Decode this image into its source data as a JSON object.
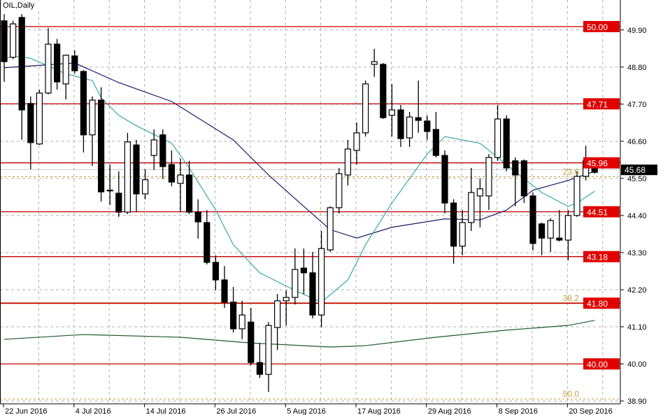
{
  "header": {
    "symbol": "OIL,Daily"
  },
  "chart_data": {
    "type": "candlestick",
    "title": "OIL,Daily",
    "ylim": [
      38.9,
      50.79
    ],
    "yticks": [
      38.9,
      40.0,
      41.1,
      42.2,
      43.3,
      44.4,
      45.5,
      46.6,
      47.7,
      48.8,
      49.9
    ],
    "xtick_labels": [
      "22 Jun 2016",
      "4 Jul 2016",
      "14 Jul 2016",
      "26 Jul 2016",
      "5 Aug 2016",
      "17 Aug 2016",
      "29 Aug 2016",
      "8 Sep 2016",
      "20 Sep 2016"
    ],
    "xtick_bar_index": [
      0,
      8,
      16,
      24,
      32,
      40,
      48,
      56,
      64
    ],
    "grid": true,
    "candle_fields": [
      "open",
      "high",
      "low",
      "close"
    ],
    "candles": [
      [
        50.17,
        50.37,
        48.36,
        48.96
      ],
      [
        49.09,
        50.17,
        49.03,
        50.08
      ],
      [
        50.27,
        50.37,
        46.64,
        47.53
      ],
      [
        47.72,
        47.93,
        45.77,
        46.56
      ],
      [
        46.52,
        48.13,
        46.49,
        48.03
      ],
      [
        48.03,
        49.96,
        47.99,
        49.48
      ],
      [
        49.48,
        49.63,
        48.13,
        48.36
      ],
      [
        48.3,
        49.17,
        47.84,
        49.15
      ],
      [
        49.13,
        49.3,
        48.61,
        48.69
      ],
      [
        48.67,
        48.71,
        46.27,
        46.79
      ],
      [
        46.79,
        47.93,
        45.87,
        47.82
      ],
      [
        47.82,
        48.2,
        44.81,
        45.1
      ],
      [
        45.15,
        45.91,
        44.71,
        45.13
      ],
      [
        45.06,
        45.71,
        44.36,
        44.5
      ],
      [
        44.5,
        46.85,
        44.44,
        46.58
      ],
      [
        46.49,
        46.64,
        44.5,
        45.04
      ],
      [
        45.04,
        45.77,
        44.88,
        45.46
      ],
      [
        46.18,
        46.95,
        45.75,
        46.64
      ],
      [
        46.79,
        46.95,
        45.48,
        45.85
      ],
      [
        45.91,
        46.33,
        45.27,
        45.39
      ],
      [
        45.35,
        46.08,
        44.5,
        45.6
      ],
      [
        45.6,
        46.02,
        44.44,
        44.5
      ],
      [
        44.5,
        44.88,
        43.71,
        44.21
      ],
      [
        44.19,
        44.56,
        42.95,
        43.01
      ],
      [
        43.01,
        43.22,
        42.18,
        42.49
      ],
      [
        42.49,
        42.9,
        41.66,
        41.83
      ],
      [
        41.83,
        42.28,
        40.93,
        41.04
      ],
      [
        41.04,
        41.87,
        40.73,
        41.45
      ],
      [
        41.24,
        41.66,
        39.96,
        40.04
      ],
      [
        40.04,
        40.62,
        39.58,
        39.69
      ],
      [
        39.69,
        41.24,
        39.17,
        41.14
      ],
      [
        41.08,
        42.07,
        40.41,
        41.87
      ],
      [
        41.87,
        42.18,
        41.14,
        41.97
      ],
      [
        41.97,
        43.42,
        41.76,
        42.8
      ],
      [
        42.84,
        43.42,
        42.07,
        42.7
      ],
      [
        42.7,
        43.32,
        41.35,
        41.45
      ],
      [
        41.45,
        43.94,
        41.08,
        43.42
      ],
      [
        43.38,
        44.67,
        43.32,
        44.63
      ],
      [
        44.63,
        45.81,
        44.46,
        45.64
      ],
      [
        45.6,
        46.64,
        45.29,
        46.37
      ],
      [
        46.33,
        47.16,
        45.91,
        46.85
      ],
      [
        46.85,
        48.4,
        46.74,
        48.3
      ],
      [
        48.88,
        49.34,
        48.51,
        48.96
      ],
      [
        48.88,
        48.92,
        47.26,
        47.3
      ],
      [
        47.37,
        48.3,
        46.74,
        47.53
      ],
      [
        47.53,
        47.68,
        46.43,
        46.68
      ],
      [
        46.7,
        47.47,
        46.43,
        47.32
      ],
      [
        47.3,
        48.4,
        46.85,
        47.22
      ],
      [
        47.2,
        47.37,
        46.64,
        46.89
      ],
      [
        46.95,
        47.47,
        46.12,
        46.18
      ],
      [
        46.18,
        46.33,
        44.46,
        44.77
      ],
      [
        44.77,
        44.88,
        42.97,
        43.49
      ],
      [
        43.49,
        44.56,
        43.22,
        44.19
      ],
      [
        44.19,
        45.81,
        43.94,
        45.08
      ],
      [
        44.98,
        45.5,
        44.05,
        45.19
      ],
      [
        44.98,
        46.22,
        44.56,
        46.12
      ],
      [
        46.12,
        47.68,
        46.02,
        47.26
      ],
      [
        47.26,
        47.37,
        45.71,
        45.81
      ],
      [
        46.02,
        46.12,
        44.67,
        45.6
      ],
      [
        46.02,
        46.06,
        44.77,
        44.98
      ],
      [
        44.98,
        45.08,
        43.36,
        43.57
      ],
      [
        44.15,
        44.19,
        43.22,
        43.73
      ],
      [
        43.73,
        44.32,
        43.32,
        44.25
      ],
      [
        43.73,
        44.56,
        43.63,
        43.67
      ],
      [
        43.67,
        44.56,
        43.07,
        44.4
      ],
      [
        44.4,
        45.71,
        44.36,
        45.56
      ],
      [
        45.56,
        46.47,
        45.44,
        46.02
      ],
      [
        46.02,
        46.06,
        45.64,
        45.68
      ]
    ],
    "moving_averages": [
      {
        "color": "#1a1a6e",
        "points": [
          [
            0,
            48.78
          ],
          [
            8,
            48.92
          ],
          [
            13,
            48.34
          ],
          [
            19,
            47.78
          ],
          [
            26,
            46.64
          ],
          [
            30,
            45.6
          ],
          [
            34,
            44.67
          ],
          [
            37,
            43.98
          ],
          [
            40,
            43.73
          ],
          [
            44,
            44.05
          ],
          [
            50,
            44.3
          ],
          [
            54,
            44.27
          ],
          [
            57,
            44.56
          ],
          [
            60,
            45.15
          ],
          [
            64,
            45.44
          ],
          [
            67,
            45.71
          ]
        ]
      },
      {
        "color": "#3aa8a8",
        "points": [
          [
            0,
            49.03
          ],
          [
            1,
            49.13
          ],
          [
            3,
            49.06
          ],
          [
            7,
            48.6
          ],
          [
            10,
            48.4
          ],
          [
            11,
            47.89
          ],
          [
            13,
            47.37
          ],
          [
            15,
            47.06
          ],
          [
            19,
            46.54
          ],
          [
            21,
            45.81
          ],
          [
            24,
            44.56
          ],
          [
            26,
            43.53
          ],
          [
            29,
            42.7
          ],
          [
            33,
            42.18
          ],
          [
            36,
            41.83
          ],
          [
            39,
            42.49
          ],
          [
            41,
            43.53
          ],
          [
            44,
            44.77
          ],
          [
            48,
            46.22
          ],
          [
            50,
            46.74
          ],
          [
            54,
            46.54
          ],
          [
            57,
            45.91
          ],
          [
            61,
            45.08
          ],
          [
            64,
            44.67
          ],
          [
            65,
            44.77
          ],
          [
            67,
            45.12
          ]
        ]
      },
      {
        "color": "#1f5a2a",
        "points": [
          [
            0,
            40.73
          ],
          [
            9,
            40.87
          ],
          [
            20,
            40.79
          ],
          [
            28,
            40.62
          ],
          [
            37,
            40.5
          ],
          [
            41,
            40.54
          ],
          [
            49,
            40.79
          ],
          [
            57,
            41.0
          ],
          [
            64,
            41.14
          ],
          [
            67,
            41.29
          ]
        ]
      }
    ],
    "levels": [
      {
        "label": "50.00",
        "value": 50.0,
        "color": "#c00000"
      },
      {
        "label": "47.71",
        "value": 47.71,
        "color": "#c00000"
      },
      {
        "label": "45.96",
        "value": 45.96,
        "color": "#c00000"
      },
      {
        "label": "44.51",
        "value": 44.51,
        "color": "#c00000"
      },
      {
        "label": "43.18",
        "value": 43.18,
        "color": "#c00000"
      },
      {
        "label": "41.80",
        "value": 41.8,
        "color": "#c00000"
      },
      {
        "label": "40.00",
        "value": 40.0,
        "color": "#c00000"
      }
    ],
    "fibonacci": [
      {
        "label": "23.6",
        "value": 45.55,
        "color": "#c8a040"
      },
      {
        "label": "38.2",
        "value": 41.8,
        "color": "#d05010"
      },
      {
        "label": "50.0",
        "value": 38.96,
        "color": "#c8a040"
      }
    ],
    "current_price": {
      "label": "45.68",
      "value": 45.68,
      "color": "#000000"
    },
    "colors": {
      "bull_body": "#ffffff",
      "bear_body": "#000000",
      "grid": "#b0b0b0"
    }
  }
}
